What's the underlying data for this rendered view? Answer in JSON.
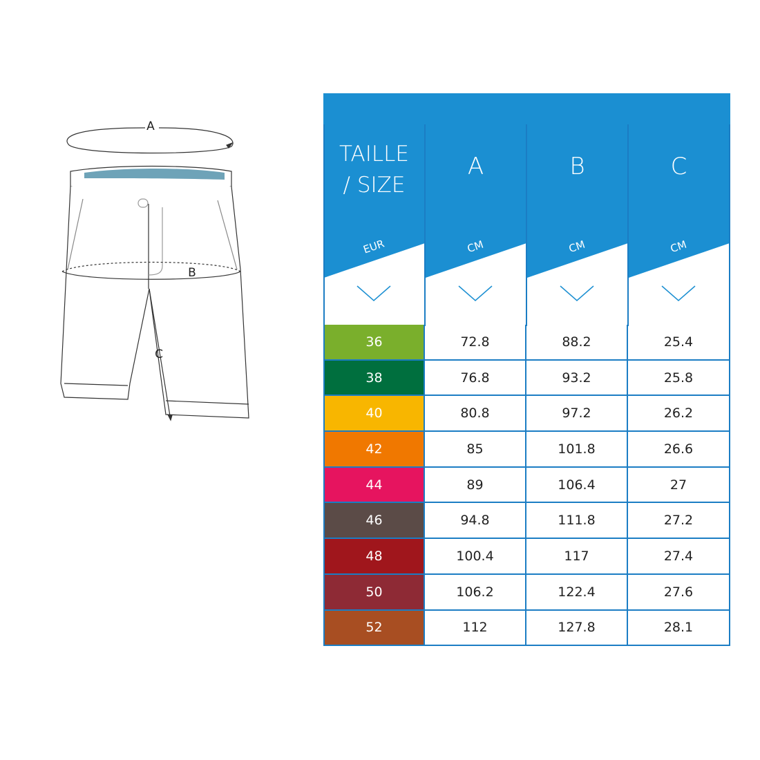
{
  "diagram": {
    "labels": {
      "a": "A",
      "b": "B",
      "c": "C"
    }
  },
  "table": {
    "header_color": "#1b8fd2",
    "size_header": {
      "line1": "TAILLE",
      "line2": "/ SIZE",
      "unit": "EUR"
    },
    "columns": [
      {
        "letter": "A",
        "unit": "CM"
      },
      {
        "letter": "B",
        "unit": "CM"
      },
      {
        "letter": "C",
        "unit": "CM"
      }
    ],
    "rows": [
      {
        "size": "36",
        "color": "#7aaf2c",
        "a": "72.8",
        "b": "88.2",
        "c": "25.4"
      },
      {
        "size": "38",
        "color": "#006f3e",
        "a": "76.8",
        "b": "93.2",
        "c": "25.8"
      },
      {
        "size": "40",
        "color": "#f8b600",
        "a": "80.8",
        "b": "97.2",
        "c": "26.2"
      },
      {
        "size": "42",
        "color": "#f07800",
        "a": "85",
        "b": "101.8",
        "c": "26.6"
      },
      {
        "size": "44",
        "color": "#e6145f",
        "a": "89",
        "b": "106.4",
        "c": "27"
      },
      {
        "size": "46",
        "color": "#5b4b47",
        "a": "94.8",
        "b": "111.8",
        "c": "27.2"
      },
      {
        "size": "48",
        "color": "#a0161c",
        "a": "100.4",
        "b": "117",
        "c": "27.4"
      },
      {
        "size": "50",
        "color": "#8e2a35",
        "a": "106.2",
        "b": "122.4",
        "c": "27.6"
      },
      {
        "size": "52",
        "color": "#a84e22",
        "a": "112",
        "b": "127.8",
        "c": "28.1"
      }
    ]
  }
}
